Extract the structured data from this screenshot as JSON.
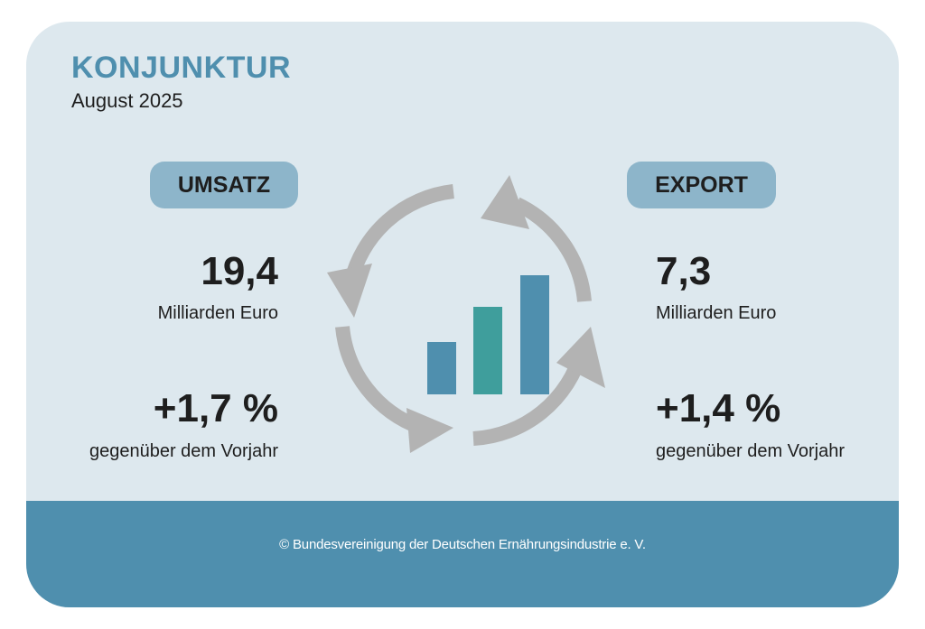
{
  "header": {
    "title": "KONJUNKTUR",
    "subtitle": "August 2025"
  },
  "umsatz": {
    "label": "UMSATZ",
    "value": "19,4",
    "unit": "Milliarden Euro",
    "change": "+1,7 %",
    "comparison": "gegenüber dem Vorjahr"
  },
  "export": {
    "label": "EXPORT",
    "value": "7,3",
    "unit": "Milliarden Euro",
    "change": "+1,4 %",
    "comparison": "gegenüber dem Vorjahr"
  },
  "graphic": {
    "icon": "cycle-bar-chart-icon",
    "colors": {
      "arrows": "#b3b3b3",
      "bar_blue": "#4f8fae",
      "bar_teal": "#3f9e9c"
    }
  },
  "footer": {
    "copyright": "© Bundesvereinigung der Deutschen Ernährungsindustrie e. V."
  },
  "colors": {
    "accent": "#4f8fae",
    "panel": "#dde8ee",
    "pill": "#8db5ca"
  }
}
